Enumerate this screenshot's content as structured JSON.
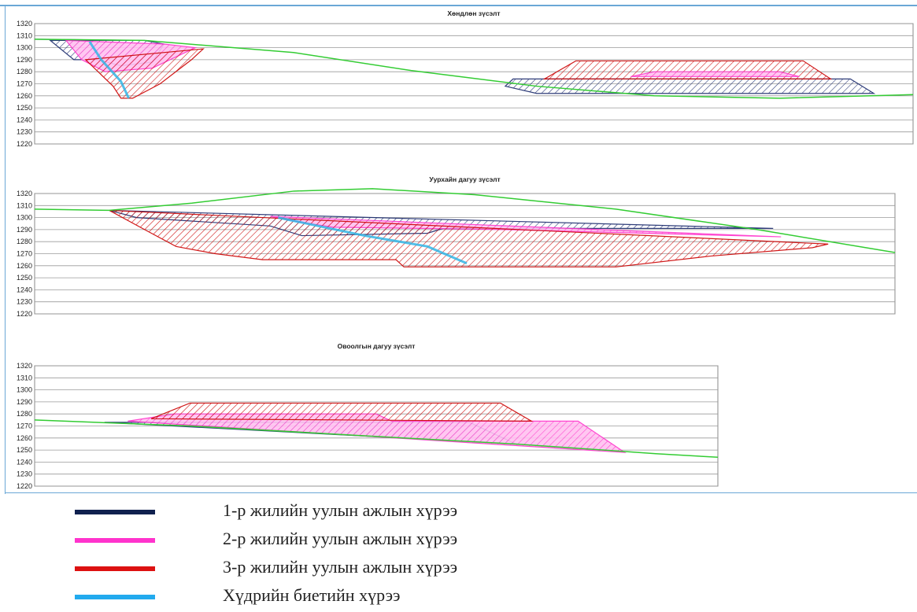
{
  "chart_data": [
    {
      "type": "area",
      "title": "Хөндлөн зүсэлт",
      "xlabel": "",
      "ylabel": "",
      "ylim": [
        1220,
        1320
      ],
      "yticks": [
        1220,
        1230,
        1240,
        1250,
        1260,
        1270,
        1280,
        1290,
        1300,
        1310,
        1320
      ],
      "grid": true,
      "series": [
        {
          "key": "ground",
          "color": "#33cc33",
          "points": [
            [
              0,
              1307
            ],
            [
              140,
              1306
            ],
            [
              330,
              1296
            ],
            [
              480,
              1281
            ],
            [
              640,
              1268
            ],
            [
              790,
              1260
            ],
            [
              950,
              1258
            ],
            [
              1120,
              1261
            ]
          ]
        },
        {
          "key": "y1",
          "color": "#1a2a6c",
          "points": [
            [
              0,
              1307
            ],
            [
              140,
              1306
            ],
            [
              20,
              1306
            ],
            [
              50,
              1290
            ],
            [
              80,
              1290
            ],
            [
              110,
              1285
            ],
            [
              150,
              1288
            ],
            [
              165,
              1303
            ],
            [
              140,
              1306
            ]
          ]
        },
        {
          "key": "y1b",
          "color": "#1a2a6c",
          "points": [
            [
              600,
              1268
            ],
            [
              610,
              1274
            ],
            [
              640,
              1274
            ],
            [
              650,
              1274
            ],
            [
              1040,
              1274
            ],
            [
              1070,
              1262
            ],
            [
              640,
              1262
            ]
          ]
        },
        {
          "key": "y2",
          "color": "#ff33cc",
          "points": [
            [
              40,
              1306
            ],
            [
              60,
              1290
            ],
            [
              90,
              1280
            ],
            [
              150,
              1283
            ],
            [
              205,
              1300
            ],
            [
              165,
              1303
            ]
          ]
        },
        {
          "key": "y3",
          "color": "#cc0000",
          "points": [
            [
              65,
              1290
            ],
            [
              100,
              1268
            ],
            [
              110,
              1258
            ],
            [
              125,
              1258
            ],
            [
              160,
              1270
            ],
            [
              200,
              1290
            ],
            [
              215,
              1299
            ]
          ]
        },
        {
          "key": "y3b",
          "color": "#cc0000",
          "points": [
            [
              650,
              1274
            ],
            [
              690,
              1289
            ],
            [
              980,
              1289
            ],
            [
              1015,
              1274
            ]
          ]
        },
        {
          "key": "y2b",
          "color": "#ff33cc",
          "points": [
            [
              760,
              1276
            ],
            [
              790,
              1280
            ],
            [
              950,
              1280
            ],
            [
              975,
              1276
            ]
          ]
        },
        {
          "key": "slip",
          "color": "#33b5e5",
          "points": [
            [
              70,
              1305
            ],
            [
              85,
              1290
            ],
            [
              110,
              1272
            ],
            [
              120,
              1258
            ]
          ]
        }
      ]
    },
    {
      "type": "area",
      "title": "Уурхайн дагуу зүсэлт",
      "xlabel": "",
      "ylabel": "",
      "ylim": [
        1220,
        1320
      ],
      "yticks": [
        1220,
        1230,
        1240,
        1250,
        1260,
        1270,
        1280,
        1290,
        1300,
        1310,
        1320
      ],
      "grid": true,
      "series": [
        {
          "key": "ground",
          "color": "#33cc33",
          "points": [
            [
              0,
              1307
            ],
            [
              95,
              1306
            ],
            [
              200,
              1312
            ],
            [
              330,
              1322
            ],
            [
              430,
              1324
            ],
            [
              560,
              1319
            ],
            [
              740,
              1307
            ],
            [
              920,
              1290
            ],
            [
              1095,
              1271
            ]
          ]
        },
        {
          "key": "y1",
          "color": "#1a2a6c",
          "points": [
            [
              95,
              1306
            ],
            [
              130,
              1300
            ],
            [
              300,
              1293
            ],
            [
              340,
              1285
            ],
            [
              500,
              1287
            ],
            [
              520,
              1291
            ],
            [
              940,
              1291
            ]
          ]
        },
        {
          "key": "y2",
          "color": "#ff33cc",
          "points": [
            [
              300,
              1301
            ],
            [
              340,
              1296
            ],
            [
              380,
              1292
            ],
            [
              600,
              1290
            ],
            [
              950,
              1284
            ]
          ]
        },
        {
          "key": "y3",
          "color": "#cc0000",
          "points": [
            [
              95,
              1306
            ],
            [
              140,
              1290
            ],
            [
              180,
              1276
            ],
            [
              230,
              1270
            ],
            [
              290,
              1265
            ],
            [
              460,
              1265
            ],
            [
              470,
              1259
            ],
            [
              740,
              1259
            ],
            [
              860,
              1268
            ],
            [
              990,
              1275
            ],
            [
              1010,
              1278
            ]
          ]
        },
        {
          "key": "slip",
          "color": "#33b5e5",
          "points": [
            [
              310,
              1300
            ],
            [
              420,
              1285
            ],
            [
              500,
              1276
            ],
            [
              550,
              1262
            ]
          ]
        }
      ]
    },
    {
      "type": "area",
      "title": "Овоолгын дагуу зүсэлт",
      "xlabel": "",
      "ylabel": "",
      "ylim": [
        1220,
        1320
      ],
      "yticks": [
        1220,
        1230,
        1240,
        1250,
        1260,
        1270,
        1280,
        1290,
        1300,
        1310,
        1320
      ],
      "grid": true,
      "series": [
        {
          "key": "ground",
          "color": "#33cc33",
          "points": [
            [
              0,
              1275
            ],
            [
              200,
              1270
            ],
            [
              420,
              1262
            ],
            [
              620,
              1255
            ],
            [
              800,
              1247
            ],
            [
              880,
              1244
            ]
          ]
        },
        {
          "key": "y1",
          "color": "#1a2a6c",
          "points": [
            [
              90,
              1273
            ],
            [
              120,
              1273
            ],
            [
              560,
              1273
            ],
            [
              620,
              1255
            ]
          ]
        },
        {
          "key": "y2",
          "color": "#ff33cc",
          "points": [
            [
              120,
              1274
            ],
            [
              180,
              1280
            ],
            [
              440,
              1280
            ],
            [
              460,
              1274
            ],
            [
              700,
              1274
            ],
            [
              760,
              1248
            ]
          ]
        },
        {
          "key": "y3",
          "color": "#cc0000",
          "points": [
            [
              150,
              1276
            ],
            [
              200,
              1289
            ],
            [
              600,
              1289
            ],
            [
              640,
              1274
            ]
          ]
        }
      ]
    }
  ],
  "legend": [
    {
      "label": "1-р жилийн уулын ажлын хүрээ",
      "color": "#10214f"
    },
    {
      "label": "2-р жилийн уулын ажлын хүрээ",
      "color": "#ff33cc"
    },
    {
      "label": "3-р жилийн уулын ажлын хүрээ",
      "color": "#dd1111"
    },
    {
      "label": "Хүдрийн биетийн хүрээ",
      "color": "#22aaee"
    }
  ]
}
